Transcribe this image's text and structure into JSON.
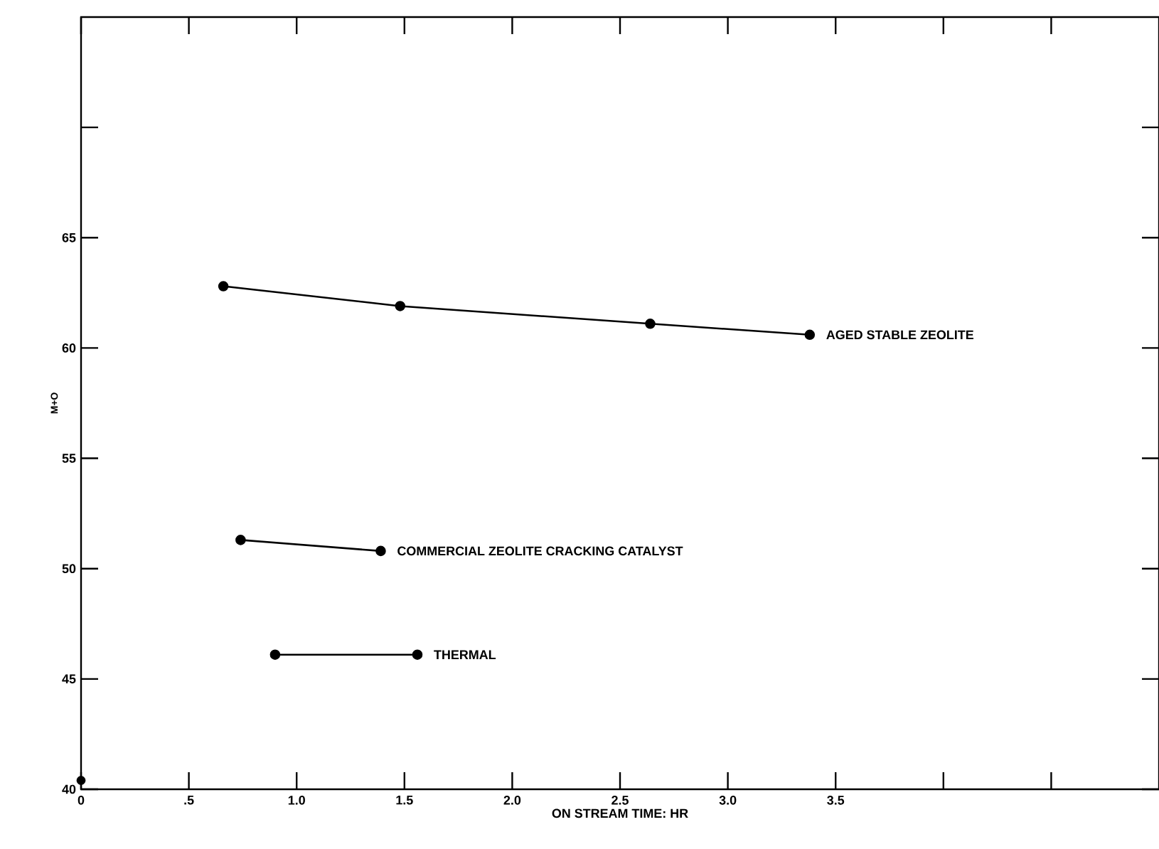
{
  "chart_data": {
    "type": "line",
    "xlabel": "ON STREAM TIME: HR",
    "ylabel": "M+O",
    "xlim": [
      0,
      5
    ],
    "ylim": [
      40,
      75
    ],
    "xticks": [
      0,
      {
        "value": 0.5,
        "label": ".5"
      },
      {
        "value": 1.0,
        "label": "1.0"
      },
      {
        "value": 1.5,
        "label": "1.5"
      },
      {
        "value": 2.0,
        "label": "2.0"
      },
      {
        "value": 2.5,
        "label": "2.5"
      },
      {
        "value": 3.0,
        "label": "3.0"
      },
      {
        "value": 3.5,
        "label": "3.5"
      },
      {
        "value": 4.0,
        "label": null
      },
      {
        "value": 4.5,
        "label": null
      }
    ],
    "yticks": [
      40,
      45,
      50,
      55,
      60,
      65,
      {
        "value": 70,
        "label": null
      }
    ],
    "marker": "circle",
    "line_style": "solid",
    "series": [
      {
        "name": "AGED STABLE ZEOLITE",
        "color": "#000000",
        "x": [
          0.66,
          1.48,
          2.64,
          3.38
        ],
        "values": [
          62.8,
          61.9,
          61.1,
          60.6
        ]
      },
      {
        "name": "COMMERCIAL ZEOLITE CRACKING CATALYST",
        "color": "#000000",
        "x": [
          0.74,
          1.39
        ],
        "values": [
          51.3,
          50.8
        ]
      },
      {
        "name": "THERMAL",
        "color": "#000000",
        "x": [
          0.9,
          1.56
        ],
        "values": [
          46.1,
          46.1
        ]
      },
      {
        "type": "scatter",
        "color": "#000000",
        "x": [
          0
        ],
        "values": [
          40.4
        ]
      }
    ]
  }
}
